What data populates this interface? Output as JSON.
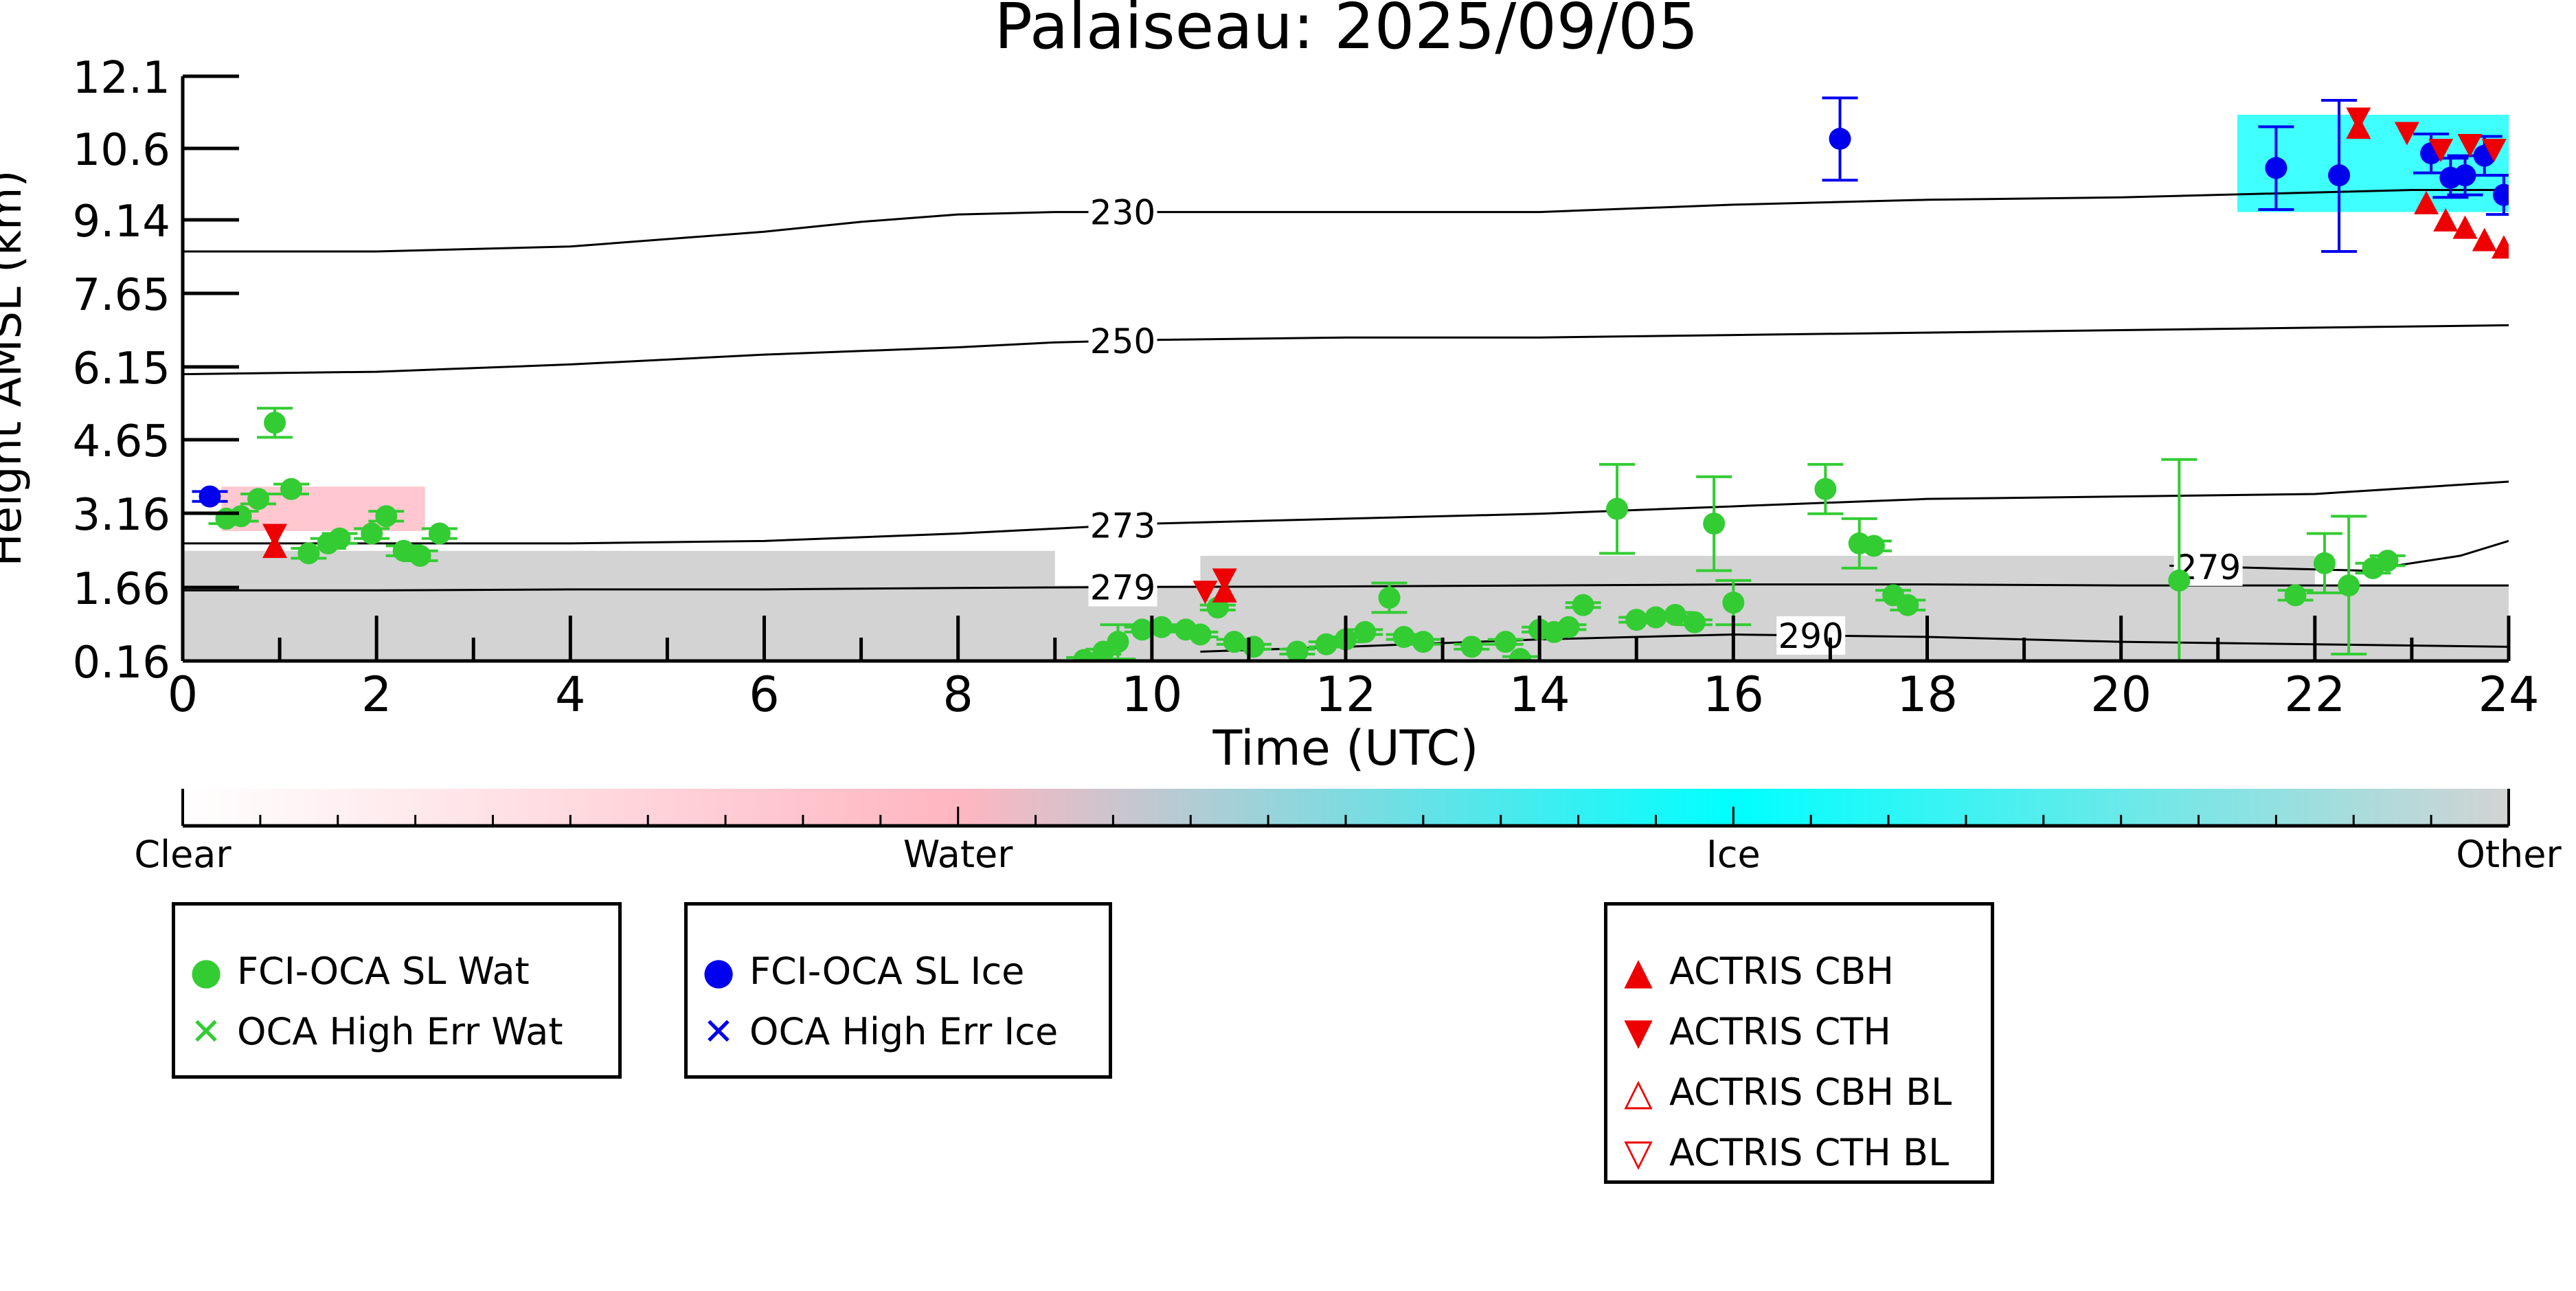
{
  "chart_data": {
    "type": "scatter",
    "title": "Palaiseau: 2025/09/05",
    "xlabel": "Time (UTC)",
    "ylabel": "Height AMSL (km)",
    "xlim": [
      0,
      24
    ],
    "ylim": [
      0.16,
      12.1
    ],
    "xticks": [
      0,
      2,
      4,
      6,
      8,
      10,
      12,
      14,
      16,
      18,
      20,
      22,
      24
    ],
    "yticks": [
      0.16,
      1.66,
      3.16,
      4.65,
      6.15,
      7.65,
      9.14,
      10.6,
      12.1
    ],
    "ytick_labels": [
      "0.16",
      "1.66",
      "3.16",
      "4.65",
      "6.15",
      "7.65",
      "9.14",
      "10.6",
      "12.1"
    ],
    "grid": false,
    "colorbar": {
      "labels": [
        "Clear",
        "Water",
        "Ice",
        "Other"
      ],
      "colors": [
        "#ffffff",
        "#ffb6c1",
        "#00ffff",
        "#d3d3d3"
      ]
    },
    "background_classification": {
      "other_color": "#d3d3d3",
      "water_color": "#ffb6c1",
      "ice_color": "#00ffff",
      "note_regions": [
        {
          "class": "Other",
          "x0": 0,
          "x1": 24,
          "y0": 0.16,
          "y1": 1.7
        },
        {
          "class": "Other",
          "x0": 0,
          "x1": 9,
          "y0": 1.7,
          "y1": 2.4
        },
        {
          "class": "Other",
          "x0": 10.5,
          "x1": 22,
          "y0": 1.7,
          "y1": 2.3
        },
        {
          "class": "Water",
          "x0": 0.4,
          "x1": 2.5,
          "y0": 2.8,
          "y1": 3.7
        },
        {
          "class": "Ice",
          "x0": 21.2,
          "x1": 24,
          "y0": 9.3,
          "y1": 11.3
        }
      ]
    },
    "isotherms": [
      {
        "label": "230",
        "label_x": 9.7,
        "x": [
          0,
          2,
          4,
          6,
          7,
          8,
          9,
          10,
          12,
          14,
          16,
          18,
          20,
          22,
          23,
          24
        ],
        "y": [
          8.5,
          8.5,
          8.6,
          8.9,
          9.1,
          9.25,
          9.3,
          9.3,
          9.3,
          9.3,
          9.45,
          9.55,
          9.6,
          9.7,
          9.75,
          9.75
        ]
      },
      {
        "label": "250",
        "label_x": 9.7,
        "x": [
          0,
          2,
          4,
          6,
          8,
          9,
          10,
          12,
          14,
          16,
          18,
          20,
          22,
          24
        ],
        "y": [
          6.0,
          6.05,
          6.2,
          6.4,
          6.55,
          6.65,
          6.7,
          6.75,
          6.75,
          6.8,
          6.85,
          6.9,
          6.95,
          7.0
        ]
      },
      {
        "label": "273",
        "label_x": 9.7,
        "x": [
          0,
          2,
          4,
          6,
          8,
          9,
          10,
          12,
          14,
          16,
          18,
          20,
          22,
          24
        ],
        "y": [
          2.55,
          2.55,
          2.55,
          2.6,
          2.75,
          2.85,
          2.95,
          3.05,
          3.15,
          3.3,
          3.45,
          3.5,
          3.55,
          3.8
        ]
      },
      {
        "label": "279",
        "label_x": 9.7,
        "x": [
          0,
          2,
          4,
          6,
          8,
          9,
          10,
          12,
          14,
          16,
          18,
          20,
          22,
          24
        ],
        "y": [
          1.6,
          1.6,
          1.62,
          1.62,
          1.65,
          1.66,
          1.67,
          1.68,
          1.7,
          1.72,
          1.72,
          1.7,
          1.7,
          1.7
        ]
      },
      {
        "label": "279",
        "label_x": 20.9,
        "x": [
          20.5,
          21.5,
          22.5,
          23.5,
          24
        ],
        "y": [
          2.1,
          2.05,
          2.0,
          2.3,
          2.6
        ]
      },
      {
        "label": "290",
        "label_x": 16.8,
        "x": [
          10.5,
          12,
          14,
          16,
          18,
          20,
          22,
          24
        ],
        "y": [
          0.35,
          0.45,
          0.6,
          0.7,
          0.65,
          0.55,
          0.5,
          0.45
        ]
      }
    ],
    "series": [
      {
        "name": "FCI-OCA SL Wat",
        "color": "#33cc33",
        "marker": "circle",
        "points": [
          {
            "x": 0.45,
            "y": 3.05,
            "err": 0.1
          },
          {
            "x": 0.6,
            "y": 3.1,
            "err": 0.1
          },
          {
            "x": 0.78,
            "y": 3.45,
            "err": 0.1
          },
          {
            "x": 0.95,
            "y": 5.0,
            "err": 0.3
          },
          {
            "x": 1.12,
            "y": 3.65,
            "err": 0.1
          },
          {
            "x": 1.3,
            "y": 2.35,
            "err": 0.1
          },
          {
            "x": 1.5,
            "y": 2.55,
            "err": 0.1
          },
          {
            "x": 1.62,
            "y": 2.65,
            "err": 0.1
          },
          {
            "x": 1.95,
            "y": 2.75,
            "err": 0.1
          },
          {
            "x": 2.1,
            "y": 3.1,
            "err": 0.1
          },
          {
            "x": 2.28,
            "y": 2.4,
            "err": 0.1
          },
          {
            "x": 2.45,
            "y": 2.3,
            "err": 0.1
          },
          {
            "x": 2.65,
            "y": 2.75,
            "err": 0.1
          },
          {
            "x": 9.3,
            "y": 0.18,
            "err": 0.05
          },
          {
            "x": 9.5,
            "y": 0.35,
            "err": 0.05
          },
          {
            "x": 9.65,
            "y": 0.55,
            "err": 0.35
          },
          {
            "x": 9.9,
            "y": 0.8,
            "err": 0.05
          },
          {
            "x": 10.1,
            "y": 0.85,
            "err": 0.05
          },
          {
            "x": 10.35,
            "y": 0.8,
            "err": 0.05
          },
          {
            "x": 10.5,
            "y": 0.7,
            "err": 0.05
          },
          {
            "x": 10.68,
            "y": 1.25,
            "err": 0.05
          },
          {
            "x": 10.85,
            "y": 0.55,
            "err": 0.05
          },
          {
            "x": 11.05,
            "y": 0.45,
            "err": 0.05
          },
          {
            "x": 11.5,
            "y": 0.35,
            "err": 0.05
          },
          {
            "x": 11.8,
            "y": 0.5,
            "err": 0.05
          },
          {
            "x": 12.0,
            "y": 0.6,
            "err": 0.05
          },
          {
            "x": 12.2,
            "y": 0.75,
            "err": 0.05
          },
          {
            "x": 12.45,
            "y": 1.45,
            "err": 0.3
          },
          {
            "x": 12.6,
            "y": 0.65,
            "err": 0.05
          },
          {
            "x": 12.8,
            "y": 0.55,
            "err": 0.05
          },
          {
            "x": 13.3,
            "y": 0.45,
            "err": 0.05
          },
          {
            "x": 13.65,
            "y": 0.55,
            "err": 0.05
          },
          {
            "x": 13.8,
            "y": 0.2,
            "err": 0.05
          },
          {
            "x": 14.0,
            "y": 0.8,
            "err": 0.05
          },
          {
            "x": 14.15,
            "y": 0.75,
            "err": 0.05
          },
          {
            "x": 14.3,
            "y": 0.85,
            "err": 0.05
          },
          {
            "x": 14.45,
            "y": 1.3,
            "err": 0.05
          },
          {
            "x": 14.8,
            "y": 3.25,
            "err": 0.9
          },
          {
            "x": 15.0,
            "y": 1.0,
            "err": 0.05
          },
          {
            "x": 15.2,
            "y": 1.05,
            "err": 0.05
          },
          {
            "x": 15.4,
            "y": 1.1,
            "err": 0.05
          },
          {
            "x": 15.6,
            "y": 0.95,
            "err": 0.05
          },
          {
            "x": 15.8,
            "y": 2.95,
            "err": 0.95
          },
          {
            "x": 16.0,
            "y": 1.35,
            "err": 0.45
          },
          {
            "x": 16.95,
            "y": 3.65,
            "err": 0.5
          },
          {
            "x": 17.3,
            "y": 2.55,
            "err": 0.5
          },
          {
            "x": 17.45,
            "y": 2.5,
            "err": 0.1
          },
          {
            "x": 17.65,
            "y": 1.5,
            "err": 0.1
          },
          {
            "x": 17.8,
            "y": 1.3,
            "err": 0.1
          },
          {
            "x": 20.6,
            "y": 1.8,
            "err": 2.45
          },
          {
            "x": 21.8,
            "y": 1.5,
            "err": 0.1
          },
          {
            "x": 22.1,
            "y": 2.15,
            "err": 0.6
          },
          {
            "x": 22.35,
            "y": 1.7,
            "err": 1.4
          },
          {
            "x": 22.6,
            "y": 2.05,
            "err": 0.1
          },
          {
            "x": 22.75,
            "y": 2.2,
            "err": 0.1
          }
        ]
      },
      {
        "name": "FCI-OCA SL Ice",
        "color": "#0000ee",
        "marker": "circle",
        "points": [
          {
            "x": 0.28,
            "y": 3.5,
            "err": 0.1
          },
          {
            "x": 17.1,
            "y": 10.8,
            "err": 0.85
          },
          {
            "x": 21.6,
            "y": 10.2,
            "err": 0.85
          },
          {
            "x": 22.25,
            "y": 10.05,
            "err": 1.55
          },
          {
            "x": 23.2,
            "y": 10.5,
            "err": 0.4
          },
          {
            "x": 23.4,
            "y": 10.0,
            "err": 0.4
          },
          {
            "x": 23.55,
            "y": 10.05,
            "err": 0.4
          },
          {
            "x": 23.75,
            "y": 10.45,
            "err": 0.4
          },
          {
            "x": 23.95,
            "y": 9.65,
            "err": 0.4
          }
        ]
      },
      {
        "name": "OCA High Err Wat",
        "color": "#33cc33",
        "marker": "x",
        "points": []
      },
      {
        "name": "OCA High Err Ice",
        "color": "#0000ee",
        "marker": "x",
        "points": []
      },
      {
        "name": "ACTRIS CBH",
        "color": "#ee0000",
        "marker": "triangle-up",
        "points": [
          {
            "x": 0.95,
            "y": 2.45
          },
          {
            "x": 10.75,
            "y": 1.55
          },
          {
            "x": 22.45,
            "y": 11.0
          },
          {
            "x": 23.15,
            "y": 9.45
          },
          {
            "x": 23.35,
            "y": 9.1
          },
          {
            "x": 23.55,
            "y": 8.95
          },
          {
            "x": 23.75,
            "y": 8.7
          },
          {
            "x": 23.95,
            "y": 8.55
          }
        ]
      },
      {
        "name": "ACTRIS CTH",
        "color": "#ee0000",
        "marker": "triangle-down",
        "points": [
          {
            "x": 0.95,
            "y": 2.75
          },
          {
            "x": 10.75,
            "y": 1.85
          },
          {
            "x": 10.55,
            "y": 1.6
          },
          {
            "x": 22.45,
            "y": 11.25
          },
          {
            "x": 22.95,
            "y": 10.95
          },
          {
            "x": 23.3,
            "y": 10.6
          },
          {
            "x": 23.6,
            "y": 10.7
          },
          {
            "x": 23.85,
            "y": 10.6
          }
        ]
      },
      {
        "name": "ACTRIS CBH BL",
        "color": "#ee0000",
        "marker": "triangle-up-open",
        "points": []
      },
      {
        "name": "ACTRIS CTH BL",
        "color": "#ee0000",
        "marker": "triangle-down-open",
        "points": []
      }
    ],
    "legends": [
      {
        "items": [
          "FCI-OCA SL Wat",
          "OCA High Err Wat"
        ]
      },
      {
        "items": [
          "FCI-OCA SL Ice",
          "OCA High Err Ice"
        ]
      },
      {
        "items": [
          "ACTRIS CBH",
          "ACTRIS CTH",
          "ACTRIS CBH BL",
          "ACTRIS CTH BL"
        ]
      }
    ]
  }
}
